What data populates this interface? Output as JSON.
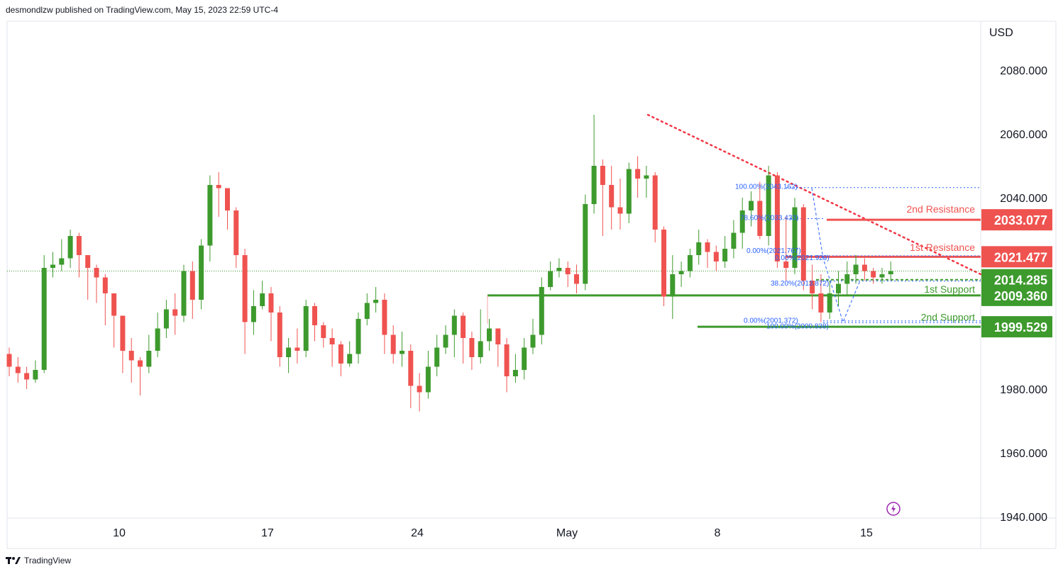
{
  "header": {
    "publish_line": "desmondlzw published on TradingView.com, May 15, 2023 22:59 UTC-4"
  },
  "footer": {
    "brand": "TradingView"
  },
  "colors": {
    "up": "#26a69a",
    "green": "#3d9a2d",
    "red": "#ef5350",
    "fib": "#2962ff",
    "trend": "#f23645"
  },
  "chart_data": {
    "type": "candlestick",
    "currency": "USD",
    "y_ticks": [
      "2080.000",
      "2060.000",
      "2040.000",
      "1980.000",
      "1960.000",
      "1940.000"
    ],
    "x_ticks": [
      "10",
      "17",
      "24",
      "May",
      "8",
      "15"
    ],
    "levels": [
      {
        "name": "2nd Resistance",
        "value": 2033.077,
        "label": "2033.077",
        "kind": "resistance"
      },
      {
        "name": "1st Resistance",
        "value": 2021.477,
        "label": "2021.477",
        "kind": "resistance"
      },
      {
        "name": "1st Support",
        "value": 2014.285,
        "label": "2014.285",
        "kind": "support"
      },
      {
        "name": "",
        "value": 2009.36,
        "label": "2009.360",
        "kind": "support"
      },
      {
        "name": "2nd Support",
        "value": 1999.529,
        "label": "1999.529",
        "kind": "support"
      }
    ],
    "fib_labels": [
      "100.00%(2043.162)",
      "78.60%(2033.433)",
      "0.00%(2021.767)",
      "0.00%(2021.929)",
      "38.20%(2013.872)",
      "0.00%(2001.372)",
      "100.00%(2000.838)"
    ],
    "candles": [
      [
        1991,
        1987,
        1993,
        1984
      ],
      [
        1987,
        1985,
        1990,
        1982
      ],
      [
        1985,
        1983,
        1987,
        1980
      ],
      [
        1983,
        1986,
        1989,
        1982
      ],
      [
        1986,
        2018,
        2022,
        1985
      ],
      [
        2018,
        2019,
        2023,
        2015
      ],
      [
        2019,
        2021,
        2027,
        2017
      ],
      [
        2021,
        2028,
        2030,
        2018
      ],
      [
        2028,
        2022,
        2029,
        2015
      ],
      [
        2022,
        2018,
        2020,
        2008
      ],
      [
        2018,
        2015,
        2019,
        2007
      ],
      [
        2015,
        2010,
        2016,
        2000
      ],
      [
        2010,
        2003,
        2006,
        1993
      ],
      [
        2003,
        1992,
        1995,
        1985
      ],
      [
        1992,
        1989,
        1996,
        1982
      ],
      [
        1989,
        1987,
        1990,
        1978
      ],
      [
        1987,
        1992,
        1997,
        1985
      ],
      [
        1992,
        1999,
        2004,
        1990
      ],
      [
        1999,
        2005,
        2008,
        1996
      ],
      [
        2005,
        2003,
        2010,
        1997
      ],
      [
        2003,
        2017,
        2019,
        2001
      ],
      [
        2017,
        2008,
        2020,
        2002
      ],
      [
        2008,
        2025,
        2027,
        2005
      ],
      [
        2025,
        2044,
        2047,
        2020
      ],
      [
        2044,
        2043,
        2048,
        2034
      ],
      [
        2043,
        2036,
        2043,
        2030
      ],
      [
        2036,
        2022,
        2037,
        2018
      ],
      [
        2022,
        2001,
        2024,
        1991
      ],
      [
        2001,
        2006,
        2011,
        1997
      ],
      [
        2006,
        2010,
        2014,
        2005
      ],
      [
        2010,
        2004,
        2012,
        1995
      ],
      [
        2004,
        1990,
        2006,
        1987
      ],
      [
        1990,
        1993,
        1996,
        1985
      ],
      [
        1993,
        1992,
        1999,
        1988
      ],
      [
        1992,
        2006,
        2008,
        1990
      ],
      [
        2006,
        2000,
        2007,
        1995
      ],
      [
        2000,
        1996,
        2001,
        1993
      ],
      [
        1996,
        1994,
        1999,
        1987
      ],
      [
        1994,
        1988,
        1995,
        1984
      ],
      [
        1988,
        1991,
        1995,
        1987
      ],
      [
        1991,
        2002,
        2004,
        1988
      ],
      [
        2002,
        2007,
        2010,
        2000
      ],
      [
        2007,
        2008,
        2012,
        2004
      ],
      [
        2008,
        1997,
        2010,
        1991
      ],
      [
        1997,
        1991,
        2000,
        1988
      ],
      [
        1991,
        1992,
        1998,
        1987
      ],
      [
        1992,
        1981,
        1994,
        1974
      ],
      [
        1981,
        1979,
        1985,
        1973
      ],
      [
        1979,
        1987,
        1992,
        1977
      ],
      [
        1987,
        1993,
        1997,
        1984
      ],
      [
        1993,
        1997,
        2000,
        1991
      ],
      [
        1997,
        2003,
        2005,
        1990
      ],
      [
        2003,
        1996,
        2004,
        1988
      ],
      [
        1996,
        1990,
        1998,
        1986
      ],
      [
        1990,
        1995,
        2005,
        1988
      ],
      [
        1995,
        1999,
        2002,
        1992
      ],
      [
        1999,
        1994,
        1998,
        1987
      ],
      [
        1994,
        1984,
        1996,
        1979
      ],
      [
        1984,
        1986,
        1991,
        1982
      ],
      [
        1986,
        1993,
        1996,
        1983
      ],
      [
        1993,
        1997,
        2002,
        1991
      ],
      [
        1997,
        2012,
        2015,
        1994
      ],
      [
        2012,
        2017,
        2020,
        2011
      ],
      [
        2017,
        2018,
        2021,
        2015
      ],
      [
        2018,
        2016,
        2020,
        2012
      ],
      [
        2016,
        2013,
        2019,
        2010
      ],
      [
        2013,
        2038,
        2041,
        2011
      ],
      [
        2038,
        2050,
        2066,
        2035
      ],
      [
        2050,
        2044,
        2052,
        2028
      ],
      [
        2044,
        2037,
        2050,
        2030
      ],
      [
        2037,
        2035,
        2046,
        2030
      ],
      [
        2035,
        2049,
        2051,
        2032
      ],
      [
        2049,
        2046,
        2053,
        2040
      ],
      [
        2046,
        2047,
        2050,
        2040
      ],
      [
        2047,
        2030,
        2048,
        2026
      ],
      [
        2030,
        2009,
        2031,
        2006
      ],
      [
        2009,
        2016,
        2022,
        2002
      ],
      [
        2016,
        2017,
        2020,
        2012
      ],
      [
        2017,
        2022,
        2024,
        2015
      ],
      [
        2022,
        2026,
        2030,
        2019
      ],
      [
        2026,
        2023,
        2027,
        2018
      ],
      [
        2023,
        2020,
        2025,
        2017
      ],
      [
        2020,
        2024,
        2028,
        2018
      ],
      [
        2024,
        2029,
        2033,
        2021
      ],
      [
        2029,
        2036,
        2040,
        2024
      ],
      [
        2036,
        2039,
        2042,
        2031
      ],
      [
        2039,
        2028,
        2045,
        2027
      ],
      [
        2028,
        2047,
        2050,
        2025
      ],
      [
        2047,
        2020,
        2048,
        2018
      ],
      [
        2020,
        2018,
        2034,
        2014
      ],
      [
        2018,
        2037,
        2040,
        2016
      ],
      [
        2037,
        2014,
        2038,
        2011
      ],
      [
        2014,
        2010,
        2019,
        2005
      ],
      [
        2010,
        2004,
        2016,
        2001
      ],
      [
        2004,
        2010,
        2014,
        2002
      ],
      [
        2010,
        2013,
        2017,
        2006
      ],
      [
        2013,
        2016,
        2020,
        2009
      ],
      [
        2016,
        2019,
        2022,
        2013
      ],
      [
        2019,
        2017,
        2021,
        2014
      ],
      [
        2017,
        2015,
        2018,
        2013
      ],
      [
        2015,
        2016,
        2018,
        2013
      ],
      [
        2016,
        2017,
        2020,
        2014
      ]
    ]
  }
}
